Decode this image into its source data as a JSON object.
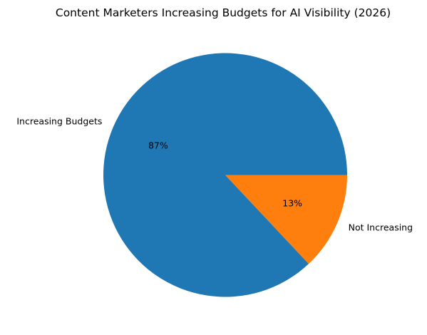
{
  "chart_data": {
    "type": "pie",
    "title": "Content Marketers Increasing Budgets for AI Visibility (2026)",
    "slices": [
      {
        "label": "Increasing Budgets",
        "value": 87,
        "pct_label": "87%",
        "color": "#1f77b4"
      },
      {
        "label": "Not Increasing",
        "value": 13,
        "pct_label": "13%",
        "color": "#ff7f0e"
      }
    ],
    "start_angle_deg": 0,
    "direction": "counterclockwise",
    "legend": "none"
  }
}
